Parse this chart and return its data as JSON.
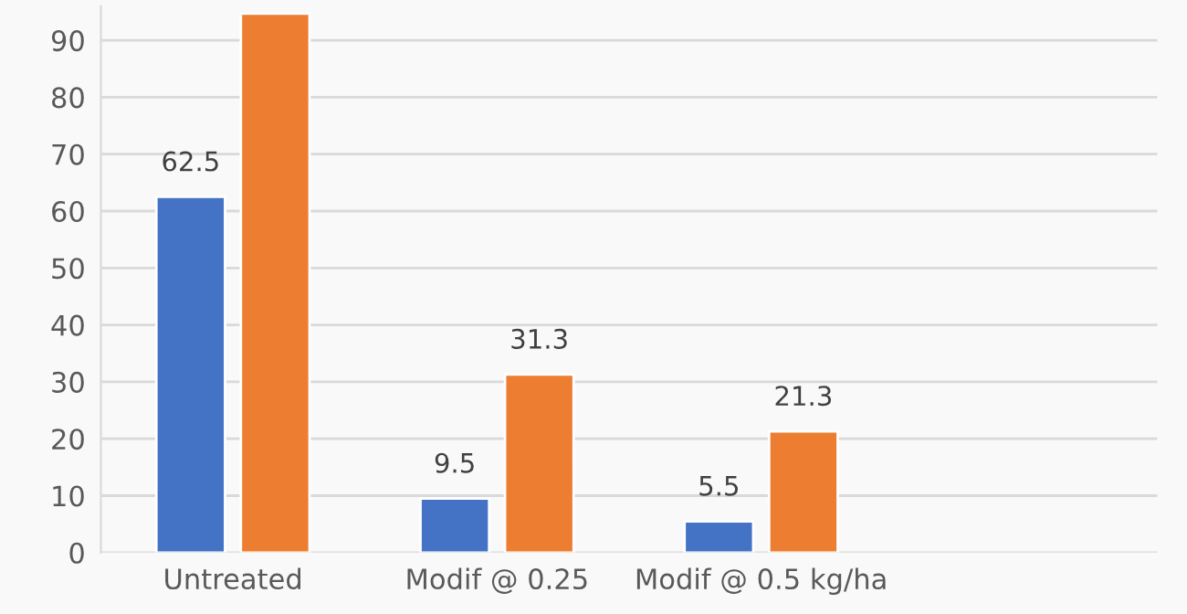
{
  "chart_data": {
    "type": "bar",
    "categories": [
      "Untreated",
      "Modif @ 0.25",
      "Modif @ 0.5 kg/ha",
      null
    ],
    "series": [
      {
        "color": "#4472c4",
        "values": [
          62.5,
          9.5,
          5.5,
          null
        ],
        "value_labels": [
          "62.5",
          "9.5",
          "5.5",
          null
        ]
      },
      {
        "color": "#ed7d31",
        "values": [
          94.7,
          31.3,
          21.3,
          null
        ],
        "value_labels": [
          null,
          "31.3",
          "21.3",
          null
        ]
      }
    ],
    "ylim": [
      0,
      96
    ],
    "yticks": [
      0,
      10,
      20,
      30,
      40,
      50,
      60,
      70,
      80,
      90
    ],
    "grid": "y"
  }
}
